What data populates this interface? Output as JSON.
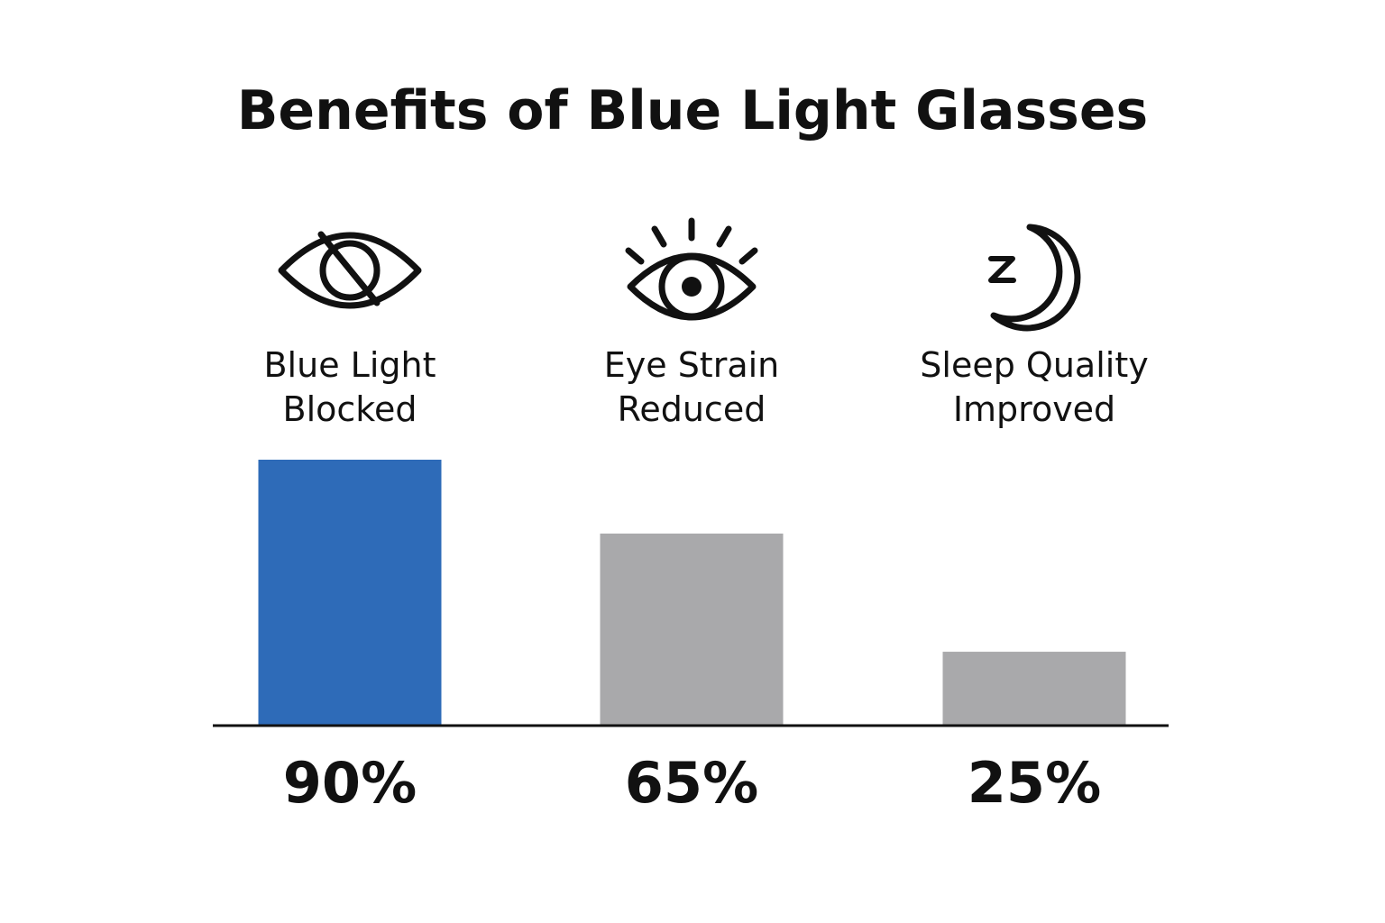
{
  "chart_data": {
    "type": "bar",
    "title": "Benefits of Blue Light Glasses",
    "categories": [
      "Blue Light Blocked",
      "Eye Strain Reduced",
      "Sleep Quality Improved"
    ],
    "values": [
      90,
      65,
      25
    ],
    "value_labels": [
      "90%",
      "65%",
      "25%"
    ],
    "colors": [
      "#2e6bb8",
      "#a9a9ab",
      "#a9a9ab"
    ]
  }
}
